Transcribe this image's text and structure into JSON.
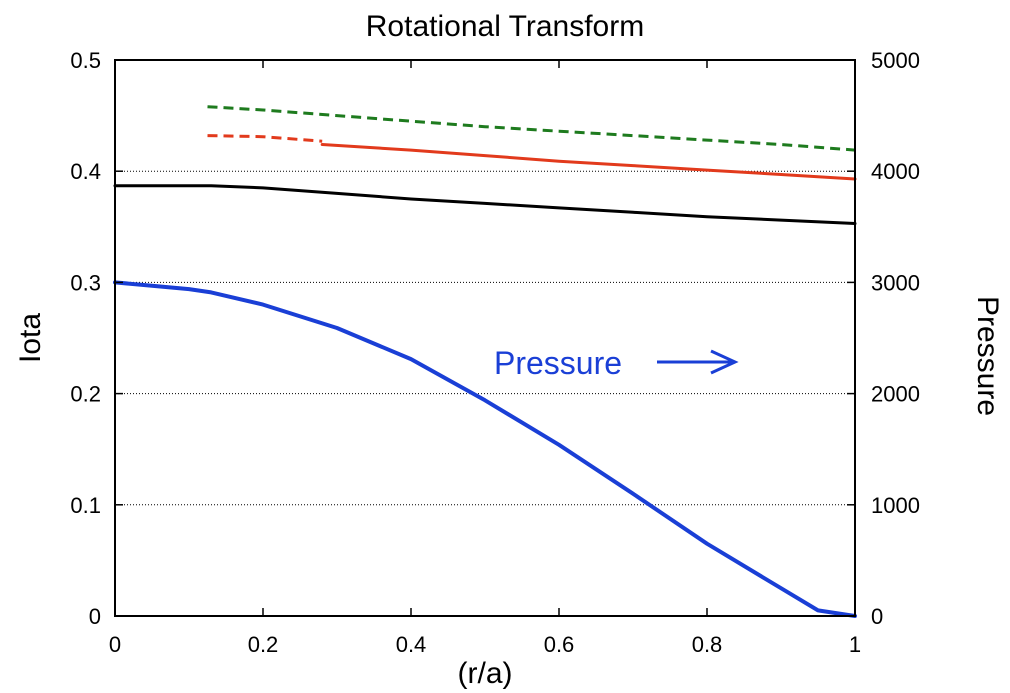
{
  "chart_data": {
    "type": "line",
    "title": "Rotational Transform",
    "xlabel": "(r/a)",
    "ylabel": "Iota",
    "y2label": "Pressure",
    "xlim": [
      0,
      1
    ],
    "ylim": [
      0,
      0.5
    ],
    "y2lim": [
      0,
      5000
    ],
    "x_ticks": [
      "0",
      "0.2",
      "0.4",
      "0.6",
      "0.8",
      "1"
    ],
    "x_tick_values": [
      0,
      0.2,
      0.4,
      0.6,
      0.8,
      1
    ],
    "y_ticks": [
      "0",
      "0.1",
      "0.2",
      "0.3",
      "0.4",
      "0.5"
    ],
    "y_tick_values": [
      0,
      0.1,
      0.2,
      0.3,
      0.4,
      0.5
    ],
    "y2_ticks": [
      "0",
      "1000",
      "2000",
      "3000",
      "4000",
      "5000"
    ],
    "y2_tick_values": [
      0,
      1000,
      2000,
      3000,
      4000,
      5000
    ],
    "grid": "horizontal dotted",
    "colors": {
      "green_dashed": "#1e7b1e",
      "red": "#e23a1c",
      "black": "#000000",
      "pressure": "#1a3fd6"
    },
    "series": [
      {
        "axis": "left",
        "color": "#1e7b1e",
        "style": "dashed",
        "x": [
          0.125,
          0.2,
          0.3,
          0.4,
          0.5,
          0.6,
          0.7,
          0.8,
          0.9,
          1.0
        ],
        "y": [
          0.458,
          0.455,
          0.45,
          0.445,
          0.44,
          0.436,
          0.432,
          0.428,
          0.424,
          0.419
        ]
      },
      {
        "axis": "left",
        "color": "#e23a1c",
        "style": "dashed",
        "x": [
          0.125,
          0.2,
          0.28
        ],
        "y": [
          0.432,
          0.431,
          0.427
        ]
      },
      {
        "axis": "left",
        "color": "#e23a1c",
        "style": "solid",
        "x": [
          0.28,
          0.4,
          0.5,
          0.6,
          0.7,
          0.8,
          0.9,
          1.0
        ],
        "y": [
          0.424,
          0.419,
          0.414,
          0.409,
          0.405,
          0.401,
          0.397,
          0.393
        ]
      },
      {
        "axis": "left",
        "color": "#000000",
        "style": "solid",
        "x": [
          0.0,
          0.05,
          0.1,
          0.13,
          0.2,
          0.3,
          0.4,
          0.5,
          0.6,
          0.7,
          0.8,
          0.9,
          1.0
        ],
        "y": [
          0.387,
          0.387,
          0.387,
          0.387,
          0.385,
          0.38,
          0.375,
          0.371,
          0.367,
          0.363,
          0.359,
          0.356,
          0.353
        ]
      },
      {
        "axis": "right",
        "color": "#1a3fd6",
        "style": "solid",
        "x": [
          0.0,
          0.05,
          0.1,
          0.13,
          0.2,
          0.3,
          0.4,
          0.5,
          0.6,
          0.7,
          0.8,
          0.9,
          0.95,
          1.0
        ],
        "y": [
          3000,
          2970,
          2940,
          2910,
          2800,
          2590,
          2310,
          1940,
          1540,
          1100,
          650,
          250,
          50,
          0
        ]
      }
    ],
    "annotation": {
      "text": "Pressure",
      "color": "#1a3fd6",
      "arrow": "right"
    }
  }
}
